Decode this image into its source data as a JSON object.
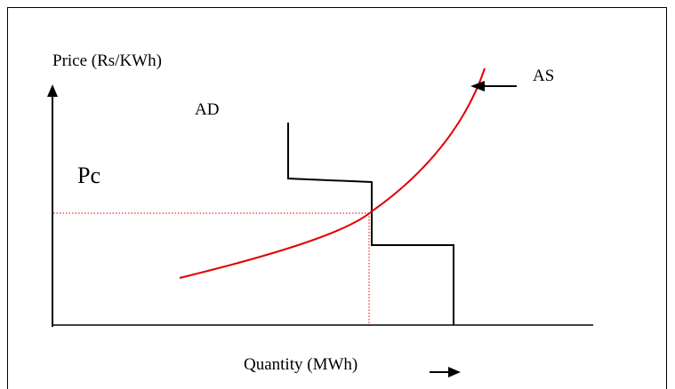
{
  "diagram": {
    "y_axis_label": "Price (Rs/KWh)",
    "x_axis_label": "Quantity (MWh)",
    "demand_label": "AD",
    "supply_label": "AS",
    "clearing_price_label": "Pc",
    "colors": {
      "axes": "#000000",
      "supply_curve": "#e00000",
      "demand_curve": "#000000",
      "guide_lines": "#e00000"
    }
  }
}
